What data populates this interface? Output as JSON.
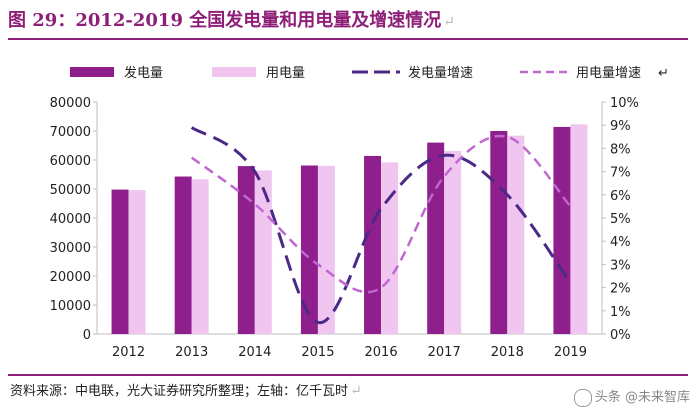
{
  "title": "图 29：2012-2019 全国发电量和用电量及增速情况",
  "title_mark": "↵",
  "source": "资料来源：中电联，光大证券研究所整理；左轴：亿千瓦时",
  "source_mark": "↵",
  "watermark": "头条 @未来智库",
  "colors": {
    "gen": "#8e1f8c",
    "use": "#f0c6f0",
    "gen_growth": "#4b2a86",
    "use_growth": "#c068d0",
    "brand": "#8e1f78"
  },
  "chart_data": {
    "type": "bar+line",
    "categories": [
      "2012",
      "2013",
      "2014",
      "2015",
      "2016",
      "2017",
      "2018",
      "2019"
    ],
    "series": [
      {
        "name": "发电量",
        "type": "bar",
        "axis": "left",
        "values": [
          49800,
          54300,
          57900,
          58100,
          61400,
          66000,
          70000,
          71400
        ]
      },
      {
        "name": "用电量",
        "type": "bar",
        "axis": "left",
        "values": [
          49600,
          53400,
          56400,
          58000,
          59200,
          63100,
          68400,
          72300
        ]
      },
      {
        "name": "发电量增速",
        "type": "line",
        "axis": "right",
        "style": "dashed",
        "values": [
          null,
          8.9,
          7.0,
          0.5,
          5.4,
          7.7,
          6.0,
          2.2
        ]
      },
      {
        "name": "用电量增速",
        "type": "line",
        "axis": "right",
        "style": "dashed",
        "values": [
          null,
          7.6,
          5.6,
          3.0,
          2.0,
          6.8,
          8.5,
          5.5
        ]
      }
    ],
    "y_left": {
      "min": 0,
      "max": 80000,
      "step": 10000,
      "ticks": [
        "80000",
        "70000",
        "60000",
        "50000",
        "40000",
        "30000",
        "20000",
        "10000",
        "0"
      ]
    },
    "y_right": {
      "min": 0,
      "max": 10,
      "step": 1,
      "ticks": [
        "10%",
        "9%",
        "8%",
        "7%",
        "6%",
        "5%",
        "4%",
        "3%",
        "2%",
        "1%",
        "0%"
      ]
    },
    "legend_position": "top"
  }
}
